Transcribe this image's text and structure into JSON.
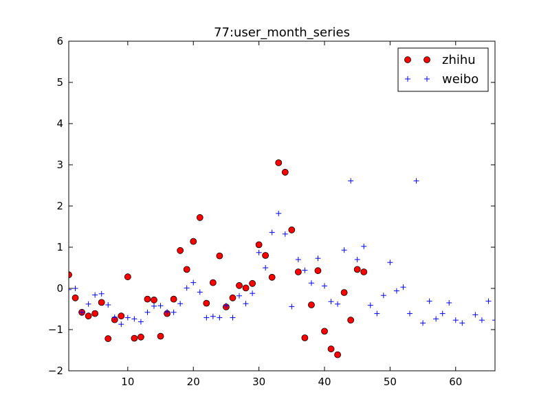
{
  "chart_data": {
    "type": "scatter",
    "title": "77:user_month_series",
    "xlabel": "",
    "ylabel": "",
    "xlim": [
      1,
      66
    ],
    "ylim": [
      -2,
      6
    ],
    "x_ticks": [
      10,
      20,
      30,
      40,
      50,
      60
    ],
    "y_ticks": [
      -2,
      -1,
      0,
      1,
      2,
      3,
      4,
      5,
      6
    ],
    "x_tick_labels": [
      "10",
      "20",
      "30",
      "40",
      "50",
      "60"
    ],
    "y_tick_labels": [
      "−2",
      "−1",
      "0",
      "1",
      "2",
      "3",
      "4",
      "5",
      "6"
    ],
    "grid": false,
    "legend_position": "top-right",
    "series": [
      {
        "name": "zhihu",
        "marker": "circle",
        "color": "#ff0000",
        "x": [
          1,
          2,
          3,
          4,
          5,
          6,
          7,
          8,
          9,
          10,
          11,
          12,
          13,
          14,
          15,
          16,
          17,
          18,
          19,
          20,
          21,
          22,
          23,
          24,
          25,
          26,
          27,
          28,
          29,
          30,
          31,
          32,
          33,
          34,
          35,
          36,
          37,
          38,
          39,
          40,
          41,
          42,
          43,
          44,
          45,
          46
        ],
        "y": [
          0.33,
          -0.23,
          -0.58,
          -0.67,
          -0.61,
          -0.34,
          -1.22,
          -0.76,
          -0.67,
          0.28,
          -1.21,
          -1.18,
          -0.26,
          -0.28,
          -1.16,
          -0.61,
          -0.26,
          0.92,
          0.46,
          1.14,
          1.72,
          -0.36,
          0.14,
          0.79,
          -0.45,
          -0.23,
          0.07,
          0.01,
          0.12,
          1.06,
          0.8,
          0.27,
          3.05,
          2.82,
          1.42,
          0.4,
          -1.2,
          -0.4,
          0.43,
          -1.04,
          -1.47,
          -1.61,
          -0.1,
          -0.77,
          0.46,
          0.4
        ]
      },
      {
        "name": "weibo",
        "marker": "plus",
        "color": "#0000ff",
        "x": [
          1,
          2,
          3,
          4,
          5,
          6,
          7,
          8,
          9,
          10,
          11,
          12,
          13,
          14,
          15,
          16,
          17,
          18,
          19,
          20,
          21,
          22,
          23,
          24,
          25,
          26,
          27,
          28,
          29,
          30,
          31,
          32,
          33,
          34,
          35,
          36,
          37,
          38,
          39,
          40,
          41,
          42,
          43,
          44,
          45,
          46,
          47,
          48,
          49,
          50,
          51,
          52,
          53,
          54,
          55,
          56,
          57,
          58,
          59,
          60,
          61,
          63,
          64,
          65,
          66
        ],
        "y": [
          -0.03,
          0.0,
          -0.58,
          -0.38,
          -0.16,
          -0.13,
          -0.4,
          -0.7,
          -0.87,
          -0.71,
          -0.74,
          -0.81,
          -0.58,
          -0.43,
          -0.42,
          -0.57,
          -0.58,
          -0.37,
          0.01,
          0.14,
          -0.09,
          -0.71,
          -0.68,
          -0.71,
          -0.42,
          -0.71,
          -0.18,
          -0.37,
          -0.12,
          0.87,
          0.5,
          1.36,
          1.82,
          1.32,
          -0.44,
          0.7,
          0.44,
          0.13,
          0.73,
          0.06,
          -0.32,
          -0.38,
          0.93,
          2.61,
          0.7,
          1.02,
          -0.41,
          -0.61,
          -0.17,
          0.63,
          -0.06,
          0.03,
          -0.61,
          2.61,
          -0.84,
          -0.31,
          -0.74,
          -0.61,
          -0.35,
          -0.77,
          -0.84,
          -0.64,
          -0.77,
          -0.31,
          -0.77
        ]
      }
    ]
  }
}
